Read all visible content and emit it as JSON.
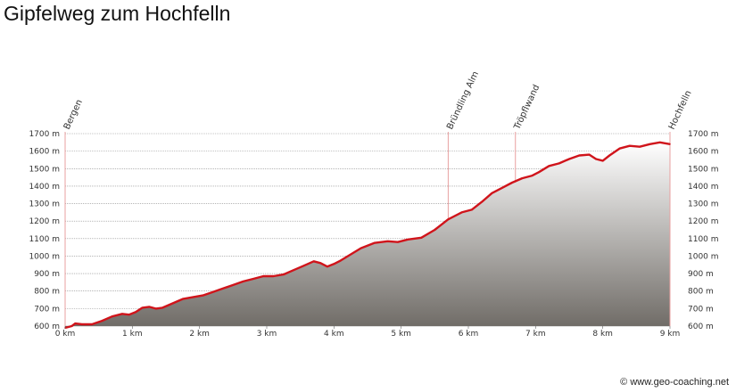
{
  "title": "Gipfelweg zum Hochfelln",
  "credit": "© www.geo-coaching.net",
  "colors": {
    "line": "#d0141b",
    "area_top": "#ffffff",
    "area_bottom": "#6f6b66",
    "grid": "#888888",
    "marker": "#e8a0a0"
  },
  "chart_data": {
    "type": "area",
    "title": "Gipfelweg zum Hochfelln",
    "xlim": [
      0,
      9
    ],
    "ylim": [
      600,
      1700
    ],
    "grid": true,
    "x_ticks": [
      "0 km",
      "1 km",
      "2 km",
      "3 km",
      "4 km",
      "5 km",
      "6 km",
      "7 km",
      "8 km",
      "9 km"
    ],
    "y_ticks": [
      "600 m",
      "700 m",
      "800 m",
      "900 m",
      "1000 m",
      "1100 m",
      "1200 m",
      "1300 m",
      "1400 m",
      "1500 m",
      "1600 m",
      "1700 m"
    ],
    "waypoints": [
      {
        "name": "Bergen",
        "km": 0
      },
      {
        "name": "Bründling Alm",
        "km": 5.7
      },
      {
        "name": "Tröpflwand",
        "km": 6.7
      },
      {
        "name": "Hochfelln",
        "km": 9
      }
    ],
    "x": [
      0,
      0.1,
      0.15,
      0.25,
      0.4,
      0.55,
      0.7,
      0.85,
      0.95,
      1.05,
      1.15,
      1.25,
      1.35,
      1.45,
      1.6,
      1.75,
      1.9,
      2.05,
      2.2,
      2.35,
      2.5,
      2.65,
      2.8,
      2.95,
      3.1,
      3.25,
      3.4,
      3.55,
      3.7,
      3.8,
      3.9,
      4.0,
      4.1,
      4.25,
      4.4,
      4.6,
      4.8,
      4.95,
      5.1,
      5.3,
      5.5,
      5.7,
      5.9,
      6.05,
      6.2,
      6.35,
      6.5,
      6.65,
      6.8,
      6.95,
      7.05,
      7.2,
      7.35,
      7.5,
      7.65,
      7.8,
      7.9,
      8.0,
      8.1,
      8.25,
      8.4,
      8.55,
      8.7,
      8.85,
      9.0
    ],
    "values": [
      590,
      600,
      615,
      610,
      610,
      630,
      655,
      670,
      665,
      680,
      705,
      710,
      700,
      705,
      730,
      755,
      765,
      775,
      795,
      815,
      835,
      855,
      870,
      885,
      885,
      895,
      920,
      945,
      970,
      960,
      940,
      955,
      975,
      1010,
      1045,
      1075,
      1085,
      1080,
      1095,
      1105,
      1150,
      1210,
      1250,
      1265,
      1310,
      1360,
      1390,
      1420,
      1445,
      1460,
      1480,
      1515,
      1530,
      1555,
      1575,
      1580,
      1555,
      1545,
      1575,
      1615,
      1630,
      1625,
      1640,
      1650,
      1640
    ]
  }
}
